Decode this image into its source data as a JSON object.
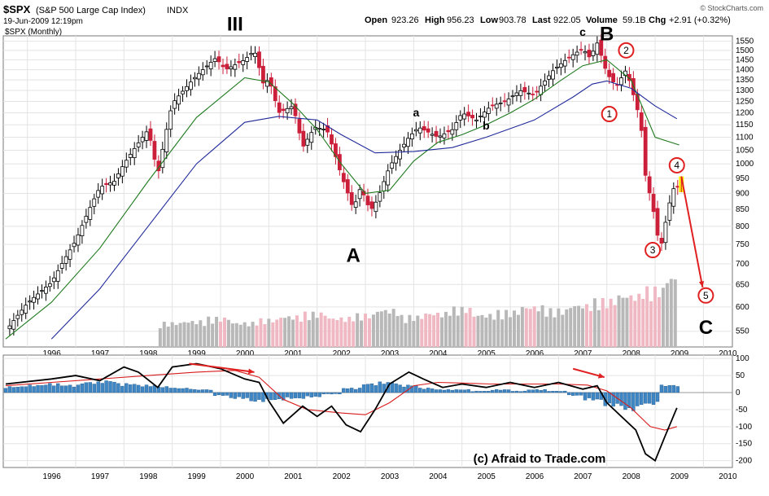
{
  "header": {
    "symbol": "$SPX",
    "name": "(S&P 500 Large Cap Index)",
    "exchange": "INDX",
    "timestamp": "19-Jun-2009 12:19pm",
    "period_label": "$SPX (Monthly)",
    "open_label": "Open",
    "open": "923.26",
    "high_label": "High",
    "high": "956.23",
    "low_label": "Low",
    "low": "903.78",
    "last_label": "Last",
    "last": "922.05",
    "volume_label": "Volume",
    "volume": "59.1B",
    "chg_label": "Chg",
    "chg": "+2.91 (+0.32%)",
    "watermark": "© StockCharts.com"
  },
  "footer": {
    "credit": "(c) Afraid to Trade.com"
  },
  "colors": {
    "up": "#000000",
    "down": "#cc1f3a",
    "ma_short": "#1e7a1e",
    "ma_long": "#1f2a9a",
    "vol_up": "#b8b8b8",
    "vol_down": "#f0b8c2",
    "hist": "#3f86c4",
    "macd": "#000000",
    "signal": "#d81b1b",
    "arrow": "#e02020",
    "highlight": "#ffee00"
  },
  "annotations": [
    {
      "text": "III",
      "year": 2000.3,
      "price": 1610,
      "style": "big"
    },
    {
      "text": "A",
      "year": 2002.75,
      "price": 705,
      "style": "big"
    },
    {
      "text": "B",
      "year": 2008.0,
      "price": 1555,
      "style": "big"
    },
    {
      "text": "C",
      "year": 2010.05,
      "price": 545,
      "style": "big"
    },
    {
      "text": "a",
      "year": 2004.05,
      "price": 1185,
      "style": "small"
    },
    {
      "text": "b",
      "year": 2005.5,
      "price": 1130,
      "style": "small"
    },
    {
      "text": "c",
      "year": 2007.5,
      "price": 1580,
      "style": "small"
    },
    {
      "text": "1",
      "year": 2008.05,
      "price": 1195,
      "style": "circle"
    },
    {
      "text": "2",
      "year": 2008.4,
      "price": 1500,
      "style": "circle"
    },
    {
      "text": "3",
      "year": 2008.95,
      "price": 735,
      "style": "circle"
    },
    {
      "text": "4",
      "year": 2009.45,
      "price": 995,
      "style": "circle"
    },
    {
      "text": "5",
      "year": 2010.05,
      "price": 625,
      "style": "circle"
    }
  ],
  "chart_data": [
    {
      "type": "candlestick",
      "title": "$SPX (Monthly)",
      "x_unit": "year",
      "xlim": [
        1995.5,
        2010.6
      ],
      "ylim": [
        520,
        1580
      ],
      "log_scale": true,
      "grid": true,
      "x_ticks": [
        "1996",
        "1997",
        "1998",
        "1999",
        "2000",
        "2001",
        "2002",
        "2003",
        "2004",
        "2005",
        "2006",
        "2007",
        "2008",
        "2009",
        "2010"
      ],
      "y_ticks": [
        550,
        600,
        650,
        700,
        750,
        800,
        850,
        900,
        950,
        1000,
        1050,
        1100,
        1150,
        1200,
        1250,
        1300,
        1350,
        1400,
        1450,
        1500,
        1550
      ],
      "price_path": [
        [
          1995.55,
          550
        ],
        [
          1996.0,
          608
        ],
        [
          1996.5,
          655
        ],
        [
          1997.0,
          760
        ],
        [
          1997.5,
          920
        ],
        [
          1997.8,
          940
        ],
        [
          1998.0,
          1000
        ],
        [
          1998.5,
          1130
        ],
        [
          1998.7,
          960
        ],
        [
          1999.0,
          1240
        ],
        [
          1999.5,
          1370
        ],
        [
          1999.9,
          1460
        ],
        [
          2000.1,
          1400
        ],
        [
          2000.5,
          1450
        ],
        [
          2000.7,
          1500
        ],
        [
          2000.9,
          1320
        ],
        [
          2001.0,
          1360
        ],
        [
          2001.2,
          1200
        ],
        [
          2001.5,
          1230
        ],
        [
          2001.7,
          1060
        ],
        [
          2001.95,
          1140
        ],
        [
          2002.2,
          1130
        ],
        [
          2002.5,
          960
        ],
        [
          2002.75,
          850
        ],
        [
          2002.9,
          920
        ],
        [
          2003.1,
          845
        ],
        [
          2003.25,
          880
        ],
        [
          2003.5,
          990
        ],
        [
          2003.9,
          1100
        ],
        [
          2004.1,
          1140
        ],
        [
          2004.5,
          1100
        ],
        [
          2004.8,
          1130
        ],
        [
          2005.0,
          1200
        ],
        [
          2005.3,
          1170
        ],
        [
          2005.6,
          1230
        ],
        [
          2005.9,
          1250
        ],
        [
          2006.2,
          1300
        ],
        [
          2006.5,
          1280
        ],
        [
          2006.9,
          1400
        ],
        [
          2007.2,
          1460
        ],
        [
          2007.5,
          1510
        ],
        [
          2007.65,
          1460
        ],
        [
          2007.8,
          1540
        ],
        [
          2008.0,
          1380
        ],
        [
          2008.2,
          1320
        ],
        [
          2008.4,
          1400
        ],
        [
          2008.55,
          1280
        ],
        [
          2008.7,
          1160
        ],
        [
          2008.8,
          960
        ],
        [
          2008.9,
          890
        ],
        [
          2009.0,
          820
        ],
        [
          2009.1,
          730
        ],
        [
          2009.2,
          800
        ],
        [
          2009.3,
          870
        ],
        [
          2009.38,
          915
        ],
        [
          2009.46,
          920
        ]
      ],
      "ma_short_path": [
        [
          1995.55,
          535
        ],
        [
          1996.5,
          610
        ],
        [
          1997.5,
          740
        ],
        [
          1998.5,
          940
        ],
        [
          1999.5,
          1180
        ],
        [
          2000.5,
          1360
        ],
        [
          2001.0,
          1340
        ],
        [
          2001.5,
          1240
        ],
        [
          2002.0,
          1130
        ],
        [
          2002.5,
          1000
        ],
        [
          2003.0,
          900
        ],
        [
          2003.5,
          910
        ],
        [
          2004.0,
          1010
        ],
        [
          2004.5,
          1080
        ],
        [
          2005.0,
          1110
        ],
        [
          2005.5,
          1150
        ],
        [
          2006.0,
          1200
        ],
        [
          2006.5,
          1260
        ],
        [
          2007.0,
          1340
        ],
        [
          2007.5,
          1420
        ],
        [
          2008.0,
          1450
        ],
        [
          2008.5,
          1350
        ],
        [
          2009.0,
          1100
        ],
        [
          2009.5,
          1070
        ]
      ],
      "ma_long_path": [
        [
          1996.5,
          535
        ],
        [
          1997.5,
          640
        ],
        [
          1998.5,
          800
        ],
        [
          1999.5,
          1000
        ],
        [
          2000.5,
          1160
        ],
        [
          2001.2,
          1185
        ],
        [
          2002.0,
          1170
        ],
        [
          2002.5,
          1110
        ],
        [
          2003.2,
          1040
        ],
        [
          2004.0,
          1045
        ],
        [
          2004.8,
          1060
        ],
        [
          2005.5,
          1100
        ],
        [
          2006.5,
          1170
        ],
        [
          2007.3,
          1270
        ],
        [
          2007.7,
          1330
        ],
        [
          2008.0,
          1345
        ],
        [
          2008.5,
          1310
        ],
        [
          2009.0,
          1230
        ],
        [
          2009.45,
          1175
        ]
      ],
      "last_bar": {
        "open": 923.26,
        "high": 956.23,
        "low": 903.78,
        "last": 922.05
      },
      "volume_relative": [
        0.3,
        0.32,
        0.36,
        0.3,
        0.34,
        0.38,
        0.42,
        0.36,
        0.4,
        0.46,
        0.38,
        0.42,
        0.48,
        0.4,
        0.44,
        0.5,
        0.46,
        0.52,
        0.58,
        0.64,
        0.72,
        0.86,
        1.0,
        0.92,
        0.7,
        0.6
      ],
      "volume_start_year": 1998.75
    },
    {
      "type": "line",
      "indicator": "oscillator",
      "xlim": [
        1995.5,
        2010.6
      ],
      "ylim": [
        -220,
        110
      ],
      "y_ticks": [
        100,
        50,
        0,
        -50,
        -100,
        -150,
        -200
      ],
      "grid": true,
      "series": [
        {
          "role": "line",
          "points": [
            [
              1995.55,
              25
            ],
            [
              1996.5,
              40
            ],
            [
              1997.0,
              50
            ],
            [
              1997.5,
              35
            ],
            [
              1998.0,
              75
            ],
            [
              1998.3,
              60
            ],
            [
              1998.7,
              15
            ],
            [
              1999.0,
              75
            ],
            [
              1999.5,
              85
            ],
            [
              2000.0,
              70
            ],
            [
              2000.5,
              40
            ],
            [
              2000.8,
              30
            ],
            [
              2001.0,
              -25
            ],
            [
              2001.3,
              -90
            ],
            [
              2001.7,
              -40
            ],
            [
              2002.0,
              -70
            ],
            [
              2002.3,
              -40
            ],
            [
              2002.6,
              -95
            ],
            [
              2002.9,
              -115
            ],
            [
              2003.2,
              -50
            ],
            [
              2003.5,
              25
            ],
            [
              2003.9,
              60
            ],
            [
              2004.2,
              40
            ],
            [
              2004.6,
              15
            ],
            [
              2005.0,
              25
            ],
            [
              2005.5,
              15
            ],
            [
              2006.0,
              30
            ],
            [
              2006.5,
              15
            ],
            [
              2007.0,
              30
            ],
            [
              2007.5,
              10
            ],
            [
              2007.8,
              20
            ],
            [
              2008.0,
              -30
            ],
            [
              2008.3,
              -70
            ],
            [
              2008.6,
              -110
            ],
            [
              2008.8,
              -180
            ],
            [
              2009.0,
              -200
            ],
            [
              2009.2,
              -130
            ],
            [
              2009.45,
              -45
            ]
          ]
        },
        {
          "role": "signal",
          "points": [
            [
              1995.55,
              20
            ],
            [
              1996.5,
              30
            ],
            [
              1997.5,
              40
            ],
            [
              1998.5,
              50
            ],
            [
              1999.5,
              60
            ],
            [
              2000.3,
              65
            ],
            [
              2000.8,
              45
            ],
            [
              2001.3,
              -20
            ],
            [
              2001.8,
              -50
            ],
            [
              2002.5,
              -60
            ],
            [
              2003.0,
              -65
            ],
            [
              2003.5,
              -30
            ],
            [
              2004.0,
              20
            ],
            [
              2004.5,
              30
            ],
            [
              2005.0,
              28
            ],
            [
              2005.6,
              25
            ],
            [
              2006.3,
              25
            ],
            [
              2007.0,
              25
            ],
            [
              2007.6,
              22
            ],
            [
              2008.0,
              5
            ],
            [
              2008.5,
              -45
            ],
            [
              2008.9,
              -100
            ],
            [
              2009.2,
              -110
            ],
            [
              2009.45,
              -100
            ]
          ]
        }
      ],
      "histogram_relative": [
        0.4,
        0.5,
        0.6,
        0.5,
        0.7,
        0.8,
        0.6,
        0.5,
        0.4,
        0.3,
        0.2,
        -0.2,
        -0.4,
        -0.6,
        -0.5,
        -0.4,
        -0.3,
        -0.1,
        0.3,
        0.6,
        0.7,
        0.5,
        0.3,
        0.2,
        0.2,
        0.1,
        0.2,
        0.1,
        0.2,
        0.1,
        -0.2,
        -0.5,
        -0.9,
        -1.2,
        -0.8,
        0.5
      ]
    }
  ]
}
